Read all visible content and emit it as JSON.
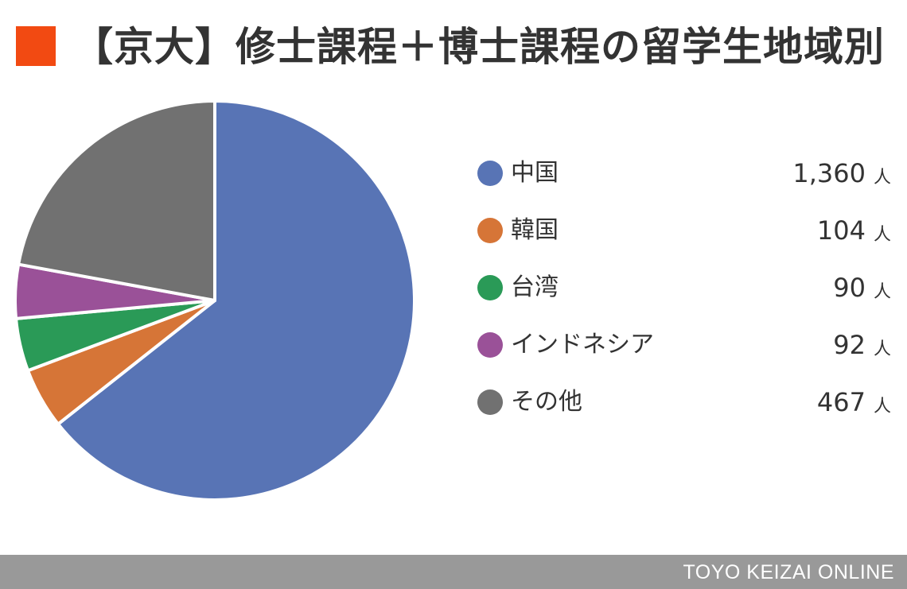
{
  "title": "【京大】修士課程＋博士課程の留学生地域別",
  "colors": {
    "title_square": "#f24a12",
    "footer_bg": "#999999"
  },
  "chart_data": {
    "type": "pie",
    "title": "【京大】修士課程＋博士課程の留学生地域別",
    "unit": "人",
    "legend_placement": "right",
    "slices": [
      {
        "label": "中国",
        "value": 1360,
        "display": "1,360",
        "color": "#5874b5"
      },
      {
        "label": "韓国",
        "value": 104,
        "display": "104",
        "color": "#d67537"
      },
      {
        "label": "台湾",
        "value": 90,
        "display": "90",
        "color": "#2a9a57"
      },
      {
        "label": "インドネシア",
        "value": 92,
        "display": "92",
        "color": "#9a5198"
      },
      {
        "label": "その他",
        "value": 467,
        "display": "467",
        "color": "#717171"
      }
    ]
  },
  "footer": {
    "text": "TOYO KEIZAI ONLINE"
  }
}
